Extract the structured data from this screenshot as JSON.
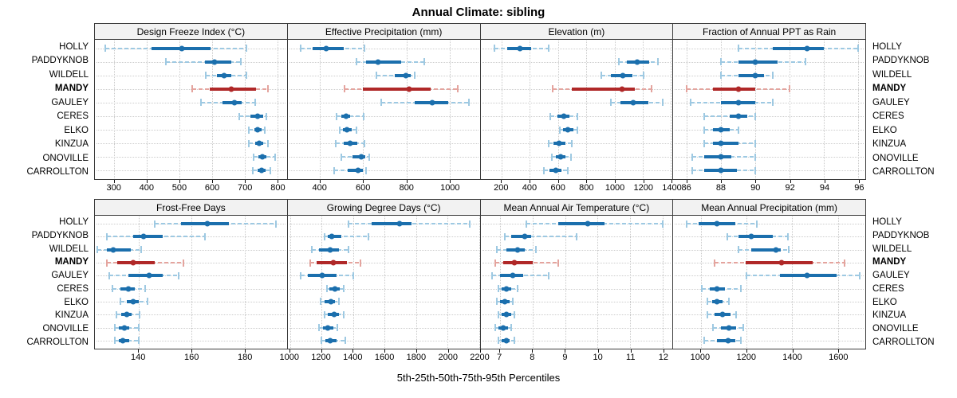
{
  "title": "Annual Climate: sibling",
  "footer": "5th-25th-50th-75th-95th Percentiles",
  "colors": {
    "blue_main": "#1b6fad",
    "blue_light": "#9ec9e2",
    "red_main": "#b02828",
    "red_light": "#e4a49e",
    "grid": "#c9c9c9",
    "panel_border": "#3c3c3c",
    "header_bg": "#f2f2f2"
  },
  "chart_data": {
    "type": "dot-interval-trellis",
    "title": "Annual Climate: sibling",
    "caption": "5th-25th-50th-75th-95th Percentiles",
    "percentiles": [
      5,
      25,
      50,
      75,
      95
    ],
    "sites": [
      "HOLLY",
      "PADDYKNOB",
      "WILDELL",
      "MANDY",
      "GAULEY",
      "CERES",
      "ELKO",
      "KINZUA",
      "ONOVILLE",
      "CARROLLTON"
    ],
    "highlight_site": "MANDY",
    "layout": {
      "rows": 2,
      "cols": 4,
      "grid": true,
      "legend": "none"
    },
    "panels": [
      {
        "title": "Design Freeze Index (°C)",
        "ticks": [
          300,
          400,
          500,
          600,
          700,
          800
        ],
        "range": [
          240,
          830
        ],
        "values": {
          "HOLLY": [
            273,
            415,
            508,
            595,
            706
          ],
          "PADDYKNOB": [
            459,
            578,
            607,
            660,
            689
          ],
          "WILDELL": [
            580,
            616,
            636,
            660,
            705
          ],
          "MANDY": [
            538,
            592,
            658,
            736,
            771
          ],
          "GAULEY": [
            565,
            632,
            668,
            692,
            732
          ],
          "CERES": [
            683,
            718,
            740,
            756,
            766
          ],
          "ELKO": [
            712,
            730,
            741,
            752,
            762
          ],
          "KINZUA": [
            713,
            732,
            746,
            758,
            771
          ],
          "ONOVILLE": [
            728,
            742,
            754,
            768,
            793
          ],
          "CARROLLTON": [
            726,
            740,
            752,
            765,
            779
          ]
        }
      },
      {
        "title": "Effective Precipitation (mm)",
        "ticks": [
          400,
          600,
          800,
          1000
        ],
        "range": [
          250,
          1140
        ],
        "values": {
          "HOLLY": [
            310,
            365,
            430,
            510,
            605
          ],
          "PADDYKNOB": [
            568,
            615,
            670,
            775,
            883
          ],
          "WILDELL": [
            660,
            745,
            798,
            820,
            840
          ],
          "MANDY": [
            515,
            600,
            812,
            913,
            1040
          ],
          "GAULEY": [
            685,
            840,
            920,
            995,
            1090
          ],
          "CERES": [
            477,
            500,
            519,
            541,
            602
          ],
          "ELKO": [
            493,
            505,
            523,
            548,
            568
          ],
          "KINZUA": [
            474,
            511,
            541,
            572,
            606
          ],
          "ONOVILLE": [
            500,
            550,
            590,
            610,
            627
          ],
          "CARROLLTON": [
            466,
            529,
            578,
            598,
            615
          ]
        }
      },
      {
        "title": "Elevation (m)",
        "ticks": [
          200,
          400,
          600,
          800,
          1000,
          1200,
          1400
        ],
        "range": [
          50,
          1410
        ],
        "values": {
          "HOLLY": [
            148,
            241,
            328,
            408,
            535
          ],
          "PADDYKNOB": [
            1032,
            1087,
            1158,
            1245,
            1305
          ],
          "WILDELL": [
            907,
            976,
            1060,
            1124,
            1208
          ],
          "MANDY": [
            561,
            697,
            1054,
            1143,
            1264
          ],
          "GAULEY": [
            976,
            1040,
            1130,
            1240,
            1338
          ],
          "CERES": [
            542,
            594,
            641,
            682,
            739
          ],
          "ELKO": [
            613,
            632,
            669,
            706,
            739
          ],
          "KINZUA": [
            535,
            566,
            607,
            650,
            697
          ],
          "ONOVILLE": [
            553,
            585,
            617,
            654,
            691
          ],
          "CARROLLTON": [
            498,
            539,
            585,
            622,
            669
          ]
        }
      },
      {
        "title": "Fraction of Annual PPT as Rain",
        "ticks": [
          86,
          88,
          90,
          92,
          94,
          96
        ],
        "range": [
          85.2,
          96.4
        ],
        "values": {
          "HOLLY": [
            89,
            91,
            93,
            94,
            96
          ],
          "PADDYKNOB": [
            88,
            89,
            90,
            91.3,
            92.9
          ],
          "WILDELL": [
            88,
            89,
            90,
            90.5,
            91
          ],
          "MANDY": [
            86,
            87.5,
            89,
            90,
            92
          ],
          "GAULEY": [
            86.2,
            88,
            89,
            90,
            91
          ],
          "CERES": [
            87,
            88.5,
            89,
            89.5,
            90
          ],
          "ELKO": [
            87,
            87.5,
            88,
            88.5,
            89
          ],
          "KINZUA": [
            87,
            87.5,
            88,
            89,
            90
          ],
          "ONOVILLE": [
            86.3,
            87,
            88,
            88.6,
            90
          ],
          "CARROLLTON": [
            86.3,
            87,
            88,
            88.9,
            90
          ]
        }
      },
      {
        "title": "Frost-Free Days",
        "ticks": [
          140,
          160,
          180
        ],
        "range": [
          123.5,
          196
        ],
        "values": {
          "HOLLY": [
            146,
            156,
            166,
            174,
            192
          ],
          "PADDYKNOB": [
            128,
            138,
            142,
            149,
            165
          ],
          "WILDELL": [
            124.5,
            128,
            130.5,
            137,
            141
          ],
          "MANDY": [
            128,
            132,
            138,
            146,
            157
          ],
          "GAULEY": [
            129,
            136,
            144,
            149,
            155
          ],
          "CERES": [
            130,
            133,
            136,
            138.5,
            142.5
          ],
          "ELKO": [
            133,
            135.5,
            138,
            140,
            143.5
          ],
          "KINZUA": [
            131.5,
            133.5,
            135.5,
            137.5,
            140.5
          ],
          "ONOVILLE": [
            131,
            132.5,
            134.5,
            136.5,
            140
          ],
          "CARROLLTON": [
            131,
            132.5,
            134,
            136.5,
            140
          ]
        }
      },
      {
        "title": "Growing Degree Days (°C)",
        "ticks": [
          1000,
          1200,
          1400,
          1600,
          1800,
          2000,
          2200
        ],
        "range": [
          985,
          2205
        ],
        "values": {
          "HOLLY": [
            1370,
            1520,
            1695,
            1770,
            2140
          ],
          "PADDYKNOB": [
            1220,
            1240,
            1267,
            1325,
            1500
          ],
          "WILDELL": [
            1137,
            1183,
            1253,
            1310,
            1373
          ],
          "MANDY": [
            1128,
            1170,
            1273,
            1362,
            1445
          ],
          "GAULEY": [
            1067,
            1112,
            1203,
            1295,
            1403
          ],
          "CERES": [
            1233,
            1250,
            1283,
            1317,
            1342
          ],
          "ELKO": [
            1192,
            1220,
            1258,
            1287,
            1312
          ],
          "KINZUA": [
            1220,
            1240,
            1278,
            1312,
            1340
          ],
          "ONOVILLE": [
            1183,
            1207,
            1240,
            1273,
            1300
          ],
          "CARROLLTON": [
            1200,
            1225,
            1257,
            1295,
            1350
          ]
        }
      },
      {
        "title": "Mean Annual Air Temperature (°C)",
        "ticks": [
          7,
          8,
          9,
          10,
          11,
          12
        ],
        "range": [
          6.4,
          12.3
        ],
        "values": {
          "HOLLY": [
            7.8,
            8.8,
            9.7,
            10.2,
            12.0
          ],
          "PADDYKNOB": [
            7.15,
            7.35,
            7.75,
            7.95,
            9.35
          ],
          "WILDELL": [
            6.9,
            7.2,
            7.55,
            7.75,
            8.1
          ],
          "MANDY": [
            6.85,
            7.1,
            7.45,
            8.0,
            8.8
          ],
          "GAULEY": [
            6.75,
            7.0,
            7.4,
            7.7,
            8.5
          ],
          "CERES": [
            6.95,
            7.05,
            7.2,
            7.35,
            7.55
          ],
          "ELKO": [
            6.9,
            7.0,
            7.15,
            7.3,
            7.4
          ],
          "KINZUA": [
            6.95,
            7.05,
            7.2,
            7.35,
            7.45
          ],
          "ONOVILLE": [
            6.85,
            6.95,
            7.1,
            7.25,
            7.35
          ],
          "CARROLLTON": [
            6.95,
            7.05,
            7.2,
            7.3,
            7.45
          ]
        }
      },
      {
        "title": "Mean Annual Precipitation (mm)",
        "ticks": [
          1000,
          1200,
          1400,
          1600
        ],
        "range": [
          880,
          1720
        ],
        "values": {
          "HOLLY": [
            940,
            990,
            1070,
            1150,
            1245
          ],
          "PADDYKNOB": [
            1115,
            1165,
            1220,
            1315,
            1380
          ],
          "WILDELL": [
            1165,
            1220,
            1330,
            1350,
            1385
          ],
          "MANDY": [
            1060,
            1195,
            1355,
            1490,
            1630
          ],
          "GAULEY": [
            1200,
            1345,
            1465,
            1595,
            1695
          ],
          "CERES": [
            1005,
            1040,
            1070,
            1105,
            1175
          ],
          "ELKO": [
            1030,
            1050,
            1070,
            1095,
            1125
          ],
          "KINZUA": [
            1030,
            1060,
            1095,
            1130,
            1155
          ],
          "ONOVILLE": [
            1055,
            1090,
            1125,
            1155,
            1185
          ],
          "CARROLLTON": [
            1015,
            1070,
            1120,
            1150,
            1175
          ]
        }
      }
    ]
  }
}
